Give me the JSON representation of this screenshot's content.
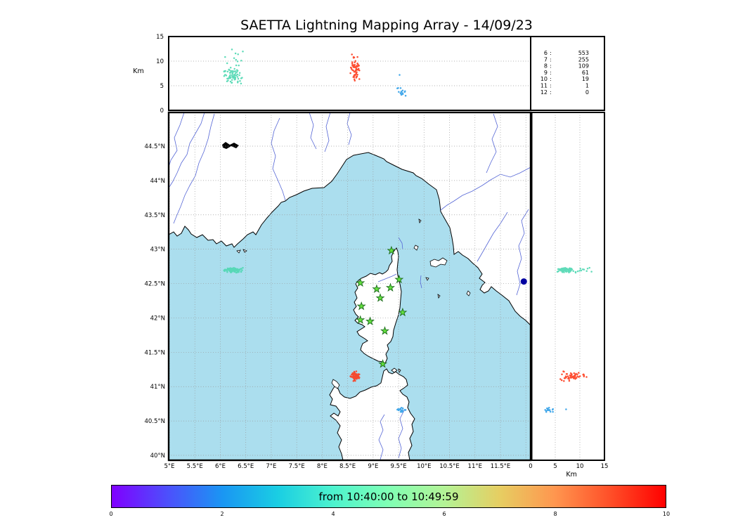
{
  "title": "SAETTA Lightning Mapping Array - 14/09/23",
  "axes": {
    "alt_left": {
      "label": "Km",
      "ticks": [
        "15",
        "10",
        "5",
        "0"
      ],
      "tick_values": [
        15,
        10,
        5,
        0
      ]
    },
    "alt_bottom": {
      "label": "Km",
      "ticks": [
        "0",
        "5",
        "10",
        "15"
      ],
      "tick_values": [
        0,
        5,
        10,
        15
      ]
    },
    "lat": {
      "ticks": [
        "44.5°N",
        "44°N",
        "43.5°N",
        "43°N",
        "42.5°N",
        "42°N",
        "41.5°N",
        "41°N",
        "40.5°N",
        "40°N"
      ],
      "tick_values": [
        44.5,
        44,
        43.5,
        43,
        42.5,
        42,
        41.5,
        41,
        40.5,
        40
      ]
    },
    "lon": {
      "ticks": [
        "5°E",
        "5.5°E",
        "6°E",
        "6.5°E",
        "7°E",
        "7.5°E",
        "8°E",
        "8.5°E",
        "9°E",
        "9.5°E",
        "10°E",
        "10.5°E",
        "11°E",
        "11.5°E"
      ],
      "tick_values": [
        5,
        5.5,
        6,
        6.5,
        7,
        7.5,
        8,
        8.5,
        9,
        9.5,
        10,
        10.5,
        11,
        11.5
      ]
    }
  },
  "stats_panel": {
    "rows": [
      {
        "label": "6",
        "value": "553",
        "highlight": false
      },
      {
        "label": "7",
        "value": "255",
        "highlight": true
      },
      {
        "label": "8",
        "value": "109",
        "highlight": false
      },
      {
        "label": "9",
        "value": "61",
        "highlight": false
      },
      {
        "label": "10",
        "value": "19",
        "highlight": false
      },
      {
        "label": "11",
        "value": "1",
        "highlight": false
      },
      {
        "label": "12",
        "value": "0",
        "highlight": false
      }
    ],
    "highlight_color": "#ff0000"
  },
  "colorbar": {
    "label": "from 10:40:00 to 10:49:59",
    "ticks": [
      "0",
      "2",
      "4",
      "6",
      "8",
      "10"
    ],
    "gradient": [
      "#8000ff",
      "#4d4ffc",
      "#1a96f3",
      "#1acee3",
      "#4df3ce",
      "#80ffb4",
      "#b3f396",
      "#e6ce62",
      "#ff964f",
      "#ff4f28",
      "#ff0000"
    ]
  },
  "colors": {
    "sea": "#abdeee",
    "land": "#ffffff",
    "coast": "#000000",
    "river": "#5566d6",
    "grid": "#999999",
    "station_fill": "#63e03e",
    "station_edge": "#1c6b1c"
  },
  "chart_data": {
    "type": "scatter",
    "title": "SAETTA Lightning Mapping Array - 14/09/23",
    "time_window": {
      "from": "10:40:00",
      "to": "10:49:59"
    },
    "colorbar": {
      "min": 0,
      "max": 10,
      "ticks": [
        0,
        2,
        4,
        6,
        8,
        10
      ],
      "colormap": "rainbow"
    },
    "altitude_axis_km": {
      "min": 0,
      "max": 15,
      "ticks": [
        0,
        5,
        10,
        15
      ],
      "label": "Km"
    },
    "map_extent": {
      "lon_min": 5.0,
      "lon_max": 12.1,
      "lat_min": 39.9,
      "lat_max": 45.0
    },
    "source_counts": [
      {
        "bin": "6",
        "count": 553
      },
      {
        "bin": "7",
        "count": 255
      },
      {
        "bin": "8",
        "count": 109
      },
      {
        "bin": "9",
        "count": 61
      },
      {
        "bin": "10",
        "count": 19
      },
      {
        "bin": "11",
        "count": 1
      },
      {
        "bin": "12",
        "count": 0
      }
    ],
    "stations_lonlat": [
      [
        9.36,
        42.98
      ],
      [
        8.75,
        42.51
      ],
      [
        9.07,
        42.42
      ],
      [
        9.34,
        42.44
      ],
      [
        9.51,
        42.56
      ],
      [
        9.14,
        42.29
      ],
      [
        8.77,
        42.17
      ],
      [
        9.58,
        42.08
      ],
      [
        8.75,
        41.97
      ],
      [
        8.94,
        41.95
      ],
      [
        9.23,
        41.81
      ],
      [
        9.19,
        41.33
      ]
    ],
    "flash_clusters": [
      {
        "name": "cell-west",
        "color": "#4fd8b2",
        "time_min": 4.3,
        "count": 85,
        "lon": [
          6.05,
          6.45
        ],
        "lat": [
          42.65,
          42.74
        ],
        "alt_km": [
          4.9,
          13.6
        ],
        "alt_dense_km": [
          5.2,
          8.8
        ]
      },
      {
        "name": "cell-south",
        "color": "#fd3b1c",
        "time_min": 9.7,
        "count": 58,
        "lon": [
          8.55,
          8.74
        ],
        "lat": [
          41.07,
          41.23
        ],
        "alt_km": [
          5.8,
          11.5
        ],
        "alt_dense_km": [
          6.5,
          10.3
        ]
      },
      {
        "name": "cell-sardinia",
        "color": "#2f9fe8",
        "time_min": 2.1,
        "count": 16,
        "lon": [
          9.45,
          9.65
        ],
        "lat": [
          40.62,
          40.7
        ],
        "alt_km": [
          2.6,
          4.6
        ],
        "alt_dense_km": [
          3.2,
          4.5
        ],
        "outliers": [
          {
            "lon": 9.52,
            "lat": 40.67,
            "alt_km": 7.2
          }
        ]
      }
    ],
    "point_marker": {
      "lon": 11.96,
      "lat": 42.53,
      "color": "#0000a0"
    }
  }
}
